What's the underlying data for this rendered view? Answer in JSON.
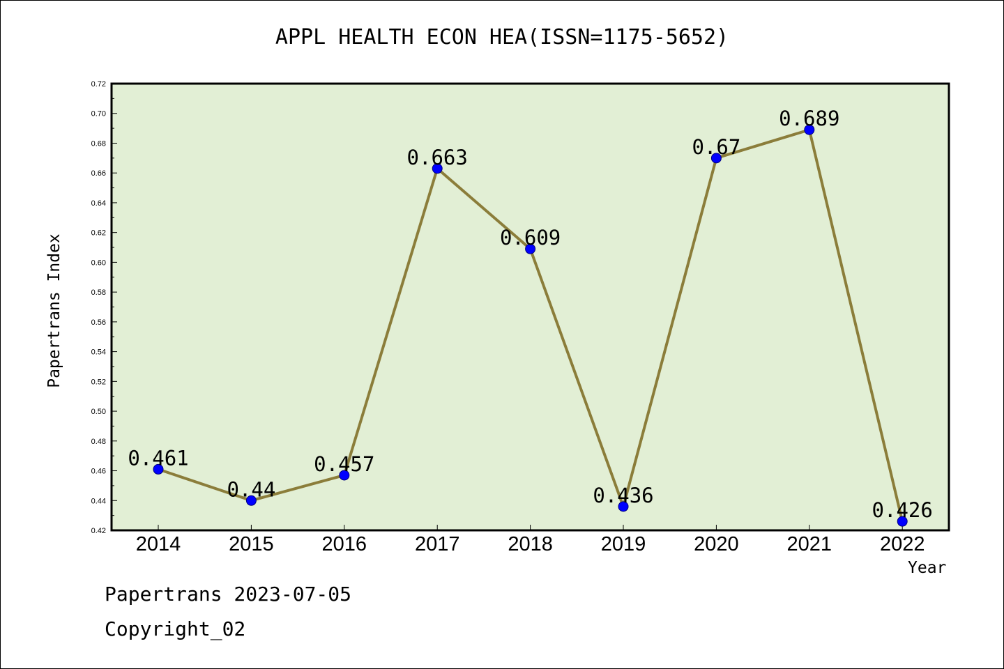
{
  "chart_data": {
    "type": "line",
    "title": "APPL HEALTH ECON HEA(ISSN=1175-5652)",
    "xlabel": "Year",
    "ylabel": "Papertrans Index",
    "categories": [
      "2014",
      "2015",
      "2016",
      "2017",
      "2018",
      "2019",
      "2020",
      "2021",
      "2022"
    ],
    "values": [
      0.461,
      0.44,
      0.457,
      0.663,
      0.609,
      0.436,
      0.67,
      0.689,
      0.426
    ],
    "data_labels": [
      "0.461",
      "0.44",
      "0.457",
      "0.663",
      "0.609",
      "0.436",
      "0.67",
      "0.689",
      "0.426"
    ],
    "ylim": [
      0.42,
      0.72
    ],
    "yticks": [
      "0.42",
      "0.44",
      "0.46",
      "0.48",
      "0.50",
      "0.52",
      "0.54",
      "0.56",
      "0.58",
      "0.60",
      "0.62",
      "0.64",
      "0.66",
      "0.68",
      "0.70",
      "0.72"
    ],
    "grid": false,
    "colors": {
      "plot_background": "#e2efd5",
      "line": "#8b7d3a",
      "marker": "#0000ff",
      "marker_edge": "#000080"
    }
  },
  "footer": {
    "line1": "Papertrans 2023-07-05",
    "line2": "Copyright_02"
  }
}
